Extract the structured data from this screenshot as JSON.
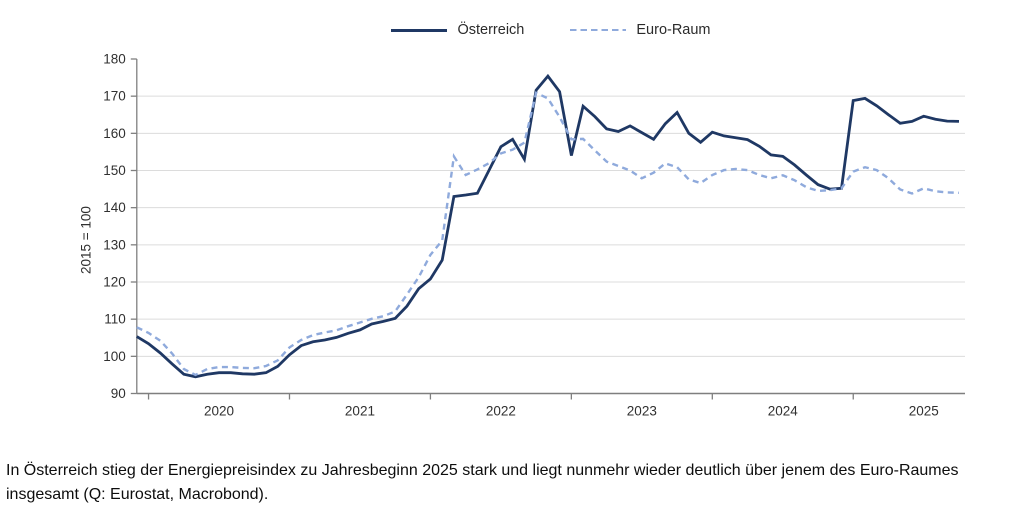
{
  "legend": {
    "series1_label": "Österreich",
    "series2_label": "Euro-Raum"
  },
  "caption": "In Österreich stieg der Energiepreisindex zu Jahresbeginn 2025 stark und liegt nunmehr wieder deutlich über jenem des Euro-Raumes insgesamt (Q: Eurostat, Macrobond).",
  "chart_data": {
    "type": "line",
    "title": "",
    "ylabel": "2015 = 100",
    "xlabel": "",
    "ylim": [
      90,
      180
    ],
    "y_ticks": [
      90,
      100,
      110,
      120,
      130,
      140,
      150,
      160,
      170,
      180
    ],
    "x_tick_labels": [
      "2020",
      "2021",
      "2022",
      "2023",
      "2024",
      "2025"
    ],
    "x_start": "2019-12",
    "x_end": "2025-10",
    "frequency": "monthly",
    "grid": "horizontal",
    "legend_position": "top",
    "axis_color": "#7f7f7f",
    "grid_color": "#dcdcdc",
    "series": [
      {
        "name": "Österreich",
        "style": "solid",
        "color": "#1f3864",
        "values": [
          105.3,
          103.4,
          100.9,
          98.0,
          95.2,
          94.5,
          95.2,
          95.6,
          95.6,
          95.3,
          95.2,
          95.6,
          97.3,
          100.4,
          102.9,
          103.9,
          104.4,
          105.1,
          106.2,
          107.1,
          108.7,
          109.4,
          110.2,
          113.5,
          118.2,
          120.8,
          125.9,
          143.0,
          143.4,
          143.9,
          150.1,
          156.4,
          158.4,
          153.0,
          171.6,
          175.4,
          171.2,
          154.0,
          167.3,
          164.5,
          161.2,
          160.5,
          162.0,
          160.2,
          158.4,
          162.6,
          165.6,
          160.0,
          157.6,
          160.3,
          159.3,
          158.8,
          158.3,
          156.5,
          154.2,
          153.8,
          151.5,
          148.8,
          146.2,
          145.0,
          145.2,
          168.8,
          169.4,
          167.4,
          165.0,
          162.7,
          163.2,
          164.6,
          163.8,
          163.3,
          163.2
        ]
      },
      {
        "name": "Euro-Raum",
        "style": "dashed",
        "color": "#8faadc",
        "values": [
          107.8,
          106.3,
          104.2,
          100.8,
          96.6,
          95.0,
          96.6,
          97.1,
          97.1,
          96.9,
          96.8,
          97.4,
          98.9,
          102.4,
          104.4,
          105.7,
          106.4,
          107.0,
          108.1,
          109.1,
          110.1,
          110.8,
          112.1,
          116.6,
          121.3,
          127.3,
          131.2,
          153.8,
          148.8,
          150.3,
          152.0,
          154.6,
          155.6,
          157.5,
          170.9,
          169.4,
          164.4,
          158.4,
          158.5,
          155.4,
          152.4,
          151.2,
          150.0,
          147.9,
          149.4,
          151.9,
          150.9,
          147.6,
          146.6,
          148.8,
          150.1,
          150.4,
          150.1,
          148.8,
          147.9,
          148.7,
          147.4,
          145.5,
          144.5,
          144.7,
          145.2,
          149.7,
          150.9,
          150.1,
          147.9,
          144.9,
          143.8,
          145.2,
          144.4,
          144.1,
          144.0
        ]
      }
    ]
  }
}
